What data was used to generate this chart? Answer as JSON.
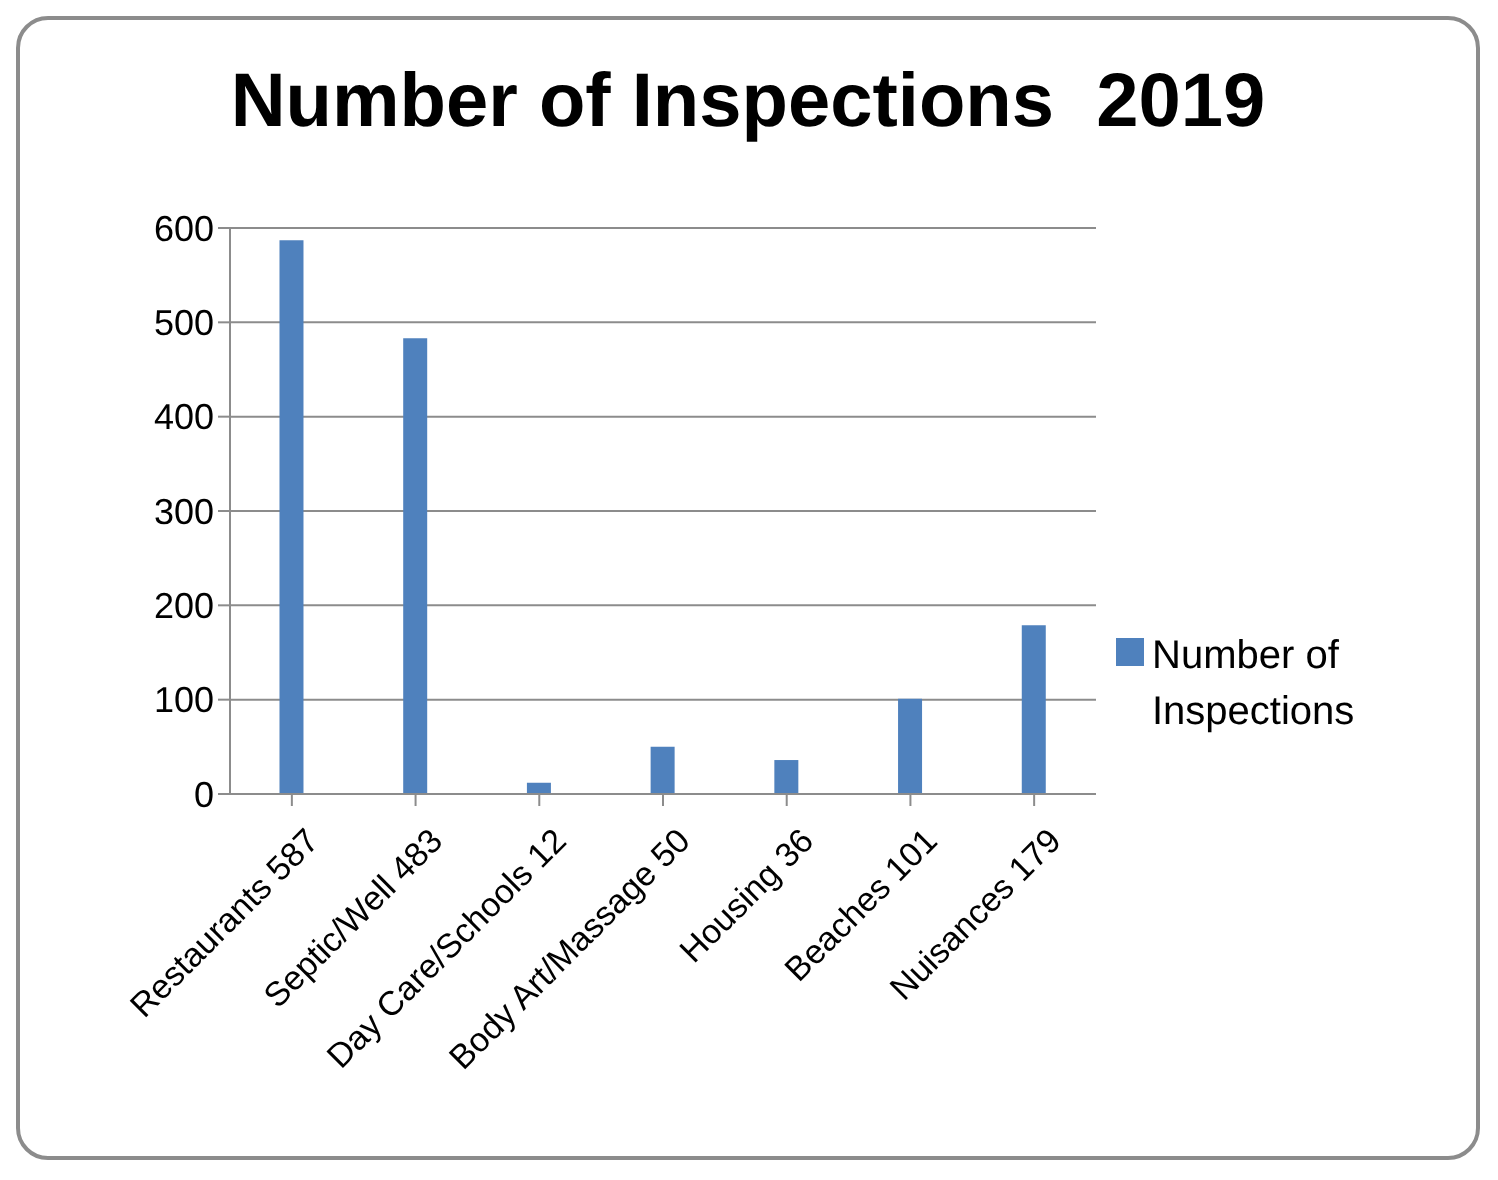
{
  "chart_data": {
    "type": "bar",
    "title": "Number of Inspections  2019",
    "categories": [
      "Restaurants  587",
      "Septic/Well 483",
      "Day Care/Schools 12",
      "Body Art/Massage 50",
      "Housing 36",
      "Beaches 101",
      "Nuisances 179"
    ],
    "series": [
      {
        "name": "Number of Inspections",
        "color": "#4f81bd",
        "values": [
          587,
          483,
          12,
          50,
          36,
          101,
          179
        ]
      }
    ],
    "ylim": [
      0,
      600
    ],
    "yticks": [
      0,
      100,
      200,
      300,
      400,
      500,
      600
    ],
    "grid": "y",
    "legend": "right"
  }
}
